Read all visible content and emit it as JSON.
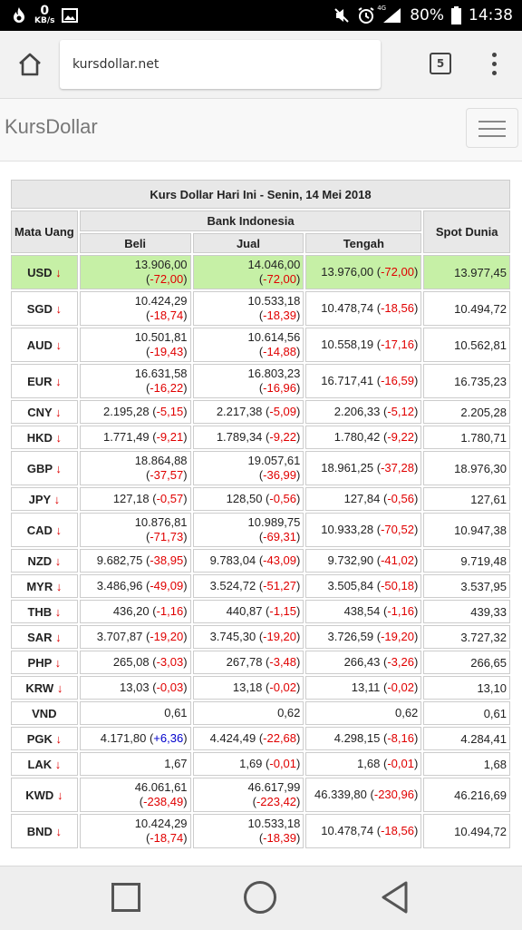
{
  "status_bar": {
    "speed_value": "0",
    "speed_unit": "KB/s",
    "battery": "80%",
    "time": "14:38",
    "signal_label": "4G"
  },
  "browser": {
    "url": "kursdollar.net",
    "tab_count": "5"
  },
  "site": {
    "brand": "KursDollar"
  },
  "table": {
    "title": "Kurs Dollar Hari Ini - Senin, 14 Mei 2018",
    "col_currency": "Mata Uang",
    "col_bank": "Bank Indonesia",
    "col_buy": "Beli",
    "col_sell": "Jual",
    "col_mid": "Tengah",
    "col_spot": "Spot Dunia",
    "rows": [
      {
        "code": "USD",
        "arrow": "↓",
        "beli": "13.906,00",
        "beli_chg": "-72,00",
        "jual": "14.046,00",
        "jual_chg": "-72,00",
        "tengah": "13.976,00",
        "tengah_chg": "-72,00",
        "spot": "13.977,45",
        "wrap": true,
        "hl": true
      },
      {
        "code": "SGD",
        "arrow": "↓",
        "beli": "10.424,29",
        "beli_chg": "-18,74",
        "jual": "10.533,18",
        "jual_chg": "-18,39",
        "tengah": "10.478,74",
        "tengah_chg": "-18,56",
        "spot": "10.494,72",
        "wrap": true
      },
      {
        "code": "AUD",
        "arrow": "↓",
        "beli": "10.501,81",
        "beli_chg": "-19,43",
        "jual": "10.614,56",
        "jual_chg": "-14,88",
        "tengah": "10.558,19",
        "tengah_chg": "-17,16",
        "spot": "10.562,81",
        "wrap": true
      },
      {
        "code": "EUR",
        "arrow": "↓",
        "beli": "16.631,58",
        "beli_chg": "-16,22",
        "jual": "16.803,23",
        "jual_chg": "-16,96",
        "tengah": "16.717,41",
        "tengah_chg": "-16,59",
        "spot": "16.735,23",
        "wrap": true
      },
      {
        "code": "CNY",
        "arrow": "↓",
        "beli": "2.195,28",
        "beli_chg": "-5,15",
        "jual": "2.217,38",
        "jual_chg": "-5,09",
        "tengah": "2.206,33",
        "tengah_chg": "-5,12",
        "spot": "2.205,28",
        "wrap": false
      },
      {
        "code": "HKD",
        "arrow": "↓",
        "beli": "1.771,49",
        "beli_chg": "-9,21",
        "jual": "1.789,34",
        "jual_chg": "-9,22",
        "tengah": "1.780,42",
        "tengah_chg": "-9,22",
        "spot": "1.780,71",
        "wrap": false
      },
      {
        "code": "GBP",
        "arrow": "↓",
        "beli": "18.864,88",
        "beli_chg": "-37,57",
        "jual": "19.057,61",
        "jual_chg": "-36,99",
        "tengah": "18.961,25",
        "tengah_chg": "-37,28",
        "spot": "18.976,30",
        "wrap": true
      },
      {
        "code": "JPY",
        "arrow": "↓",
        "beli": "127,18",
        "beli_chg": "-0,57",
        "jual": "128,50",
        "jual_chg": "-0,56",
        "tengah": "127,84",
        "tengah_chg": "-0,56",
        "spot": "127,61",
        "wrap": false
      },
      {
        "code": "CAD",
        "arrow": "↓",
        "beli": "10.876,81",
        "beli_chg": "-71,73",
        "jual": "10.989,75",
        "jual_chg": "-69,31",
        "tengah": "10.933,28",
        "tengah_chg": "-70,52",
        "spot": "10.947,38",
        "wrap": true
      },
      {
        "code": "NZD",
        "arrow": "↓",
        "beli": "9.682,75",
        "beli_chg": "-38,95",
        "jual": "9.783,04",
        "jual_chg": "-43,09",
        "tengah": "9.732,90",
        "tengah_chg": "-41,02",
        "spot": "9.719,48",
        "wrap": false
      },
      {
        "code": "MYR",
        "arrow": "↓",
        "beli": "3.486,96",
        "beli_chg": "-49,09",
        "jual": "3.524,72",
        "jual_chg": "-51,27",
        "tengah": "3.505,84",
        "tengah_chg": "-50,18",
        "spot": "3.537,95",
        "wrap": false
      },
      {
        "code": "THB",
        "arrow": "↓",
        "beli": "436,20",
        "beli_chg": "-1,16",
        "jual": "440,87",
        "jual_chg": "-1,15",
        "tengah": "438,54",
        "tengah_chg": "-1,16",
        "spot": "439,33",
        "wrap": false
      },
      {
        "code": "SAR",
        "arrow": "↓",
        "beli": "3.707,87",
        "beli_chg": "-19,20",
        "jual": "3.745,30",
        "jual_chg": "-19,20",
        "tengah": "3.726,59",
        "tengah_chg": "-19,20",
        "spot": "3.727,32",
        "wrap": false
      },
      {
        "code": "PHP",
        "arrow": "↓",
        "beli": "265,08",
        "beli_chg": "-3,03",
        "jual": "267,78",
        "jual_chg": "-3,48",
        "tengah": "266,43",
        "tengah_chg": "-3,26",
        "spot": "266,65",
        "wrap": false
      },
      {
        "code": "KRW",
        "arrow": "↓",
        "beli": "13,03",
        "beli_chg": "-0,03",
        "jual": "13,18",
        "jual_chg": "-0,02",
        "tengah": "13,11",
        "tengah_chg": "-0,02",
        "spot": "13,10",
        "wrap": false
      },
      {
        "code": "VND",
        "arrow": "",
        "beli": "0,61",
        "beli_chg": "",
        "jual": "0,62",
        "jual_chg": "",
        "tengah": "0,62",
        "tengah_chg": "",
        "spot": "0,61",
        "wrap": false
      },
      {
        "code": "PGK",
        "arrow": "↓",
        "beli": "4.171,80",
        "beli_chg": "+6,36",
        "jual": "4.424,49",
        "jual_chg": "-22,68",
        "tengah": "4.298,15",
        "tengah_chg": "-8,16",
        "spot": "4.284,41",
        "wrap": false
      },
      {
        "code": "LAK",
        "arrow": "↓",
        "beli": "1,67",
        "beli_chg": "",
        "jual": "1,69",
        "jual_chg": "-0,01",
        "tengah": "1,68",
        "tengah_chg": "-0,01",
        "spot": "1,68",
        "wrap": false
      },
      {
        "code": "KWD",
        "arrow": "↓",
        "beli": "46.061,61",
        "beli_chg": "-238,49",
        "jual": "46.617,99",
        "jual_chg": "-223,42",
        "tengah": "46.339,80",
        "tengah_chg": "-230,96",
        "spot": "46.216,69",
        "wrap": true
      },
      {
        "code": "BND",
        "arrow": "↓",
        "beli": "10.424,29",
        "beli_chg": "-18,74",
        "jual": "10.533,18",
        "jual_chg": "-18,39",
        "tengah": "10.478,74",
        "tengah_chg": "-18,56",
        "spot": "10.494,72",
        "wrap": true
      }
    ]
  }
}
